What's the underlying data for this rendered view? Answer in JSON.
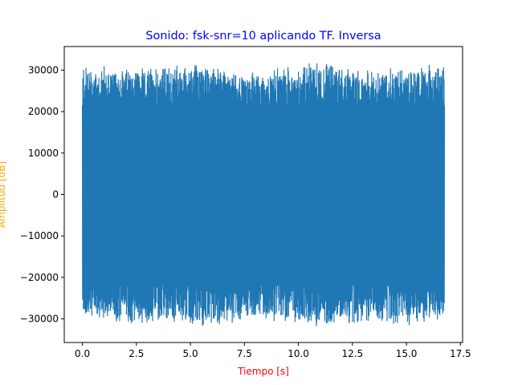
{
  "chart_data": {
    "type": "line",
    "title": "Sonido: fsk-snr=10 aplicando TF. Inversa",
    "xlabel": "Tiempo [s]",
    "ylabel": "Amplitud [dB]",
    "xlim": [
      -0.84,
      17.6
    ],
    "ylim": [
      -35700,
      35700
    ],
    "x_ticks": [
      0.0,
      2.5,
      5.0,
      7.5,
      10.0,
      12.5,
      15.0,
      17.5
    ],
    "x_tick_labels": [
      "0.0",
      "2.5",
      "5.0",
      "7.5",
      "10.0",
      "12.5",
      "15.0",
      "17.5"
    ],
    "y_ticks": [
      30000,
      20000,
      10000,
      0,
      -10000,
      -20000,
      -30000
    ],
    "y_tick_labels": [
      "30000",
      "20000",
      "10000",
      "0",
      "−10000",
      "−20000",
      "−30000"
    ],
    "grid": false,
    "series": [
      {
        "x_range": [
          0.0,
          16.76
        ],
        "envelope_upper": [
          32000,
          30500,
          31500,
          32000,
          29500,
          31000,
          32500,
          30000,
          31800,
          31200
        ],
        "envelope_lower": [
          -30000,
          -32000,
          -31000,
          -32500,
          -30500,
          -31500,
          -32000,
          -30800,
          -32200,
          -30500
        ],
        "dense_band": [
          -22000,
          22000
        ],
        "start_value": 21500,
        "end_value": 21500
      }
    ],
    "colors": {
      "line": "#1f77b4",
      "title": "#0000ff",
      "xlabel": "#ff0000",
      "ylabel": "#ffa500",
      "axes": "#000000"
    }
  }
}
